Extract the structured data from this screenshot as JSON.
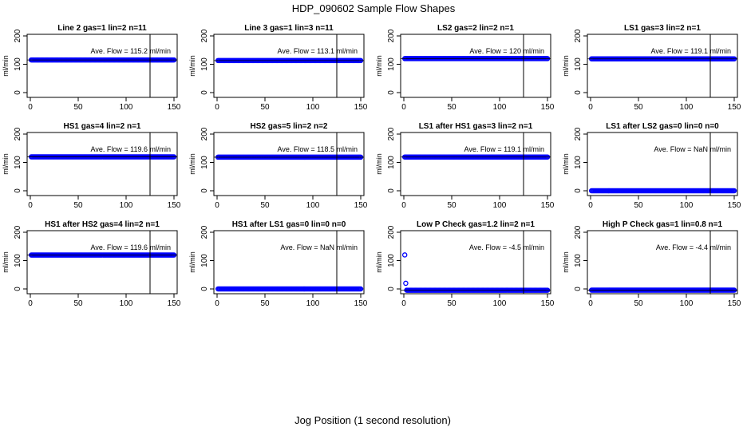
{
  "page": {
    "title": "HDP_090602  Sample Flow Shapes",
    "xlabel": "Jog Position (1 second resolution)"
  },
  "style": {
    "point_color": "#0000ff",
    "axis_color": "#000000"
  },
  "chart_data": [
    {
      "type": "scatter",
      "title": "Line 2 gas=1 lin=2 n=11",
      "ylabel": "ml/min",
      "annotation": {
        "label": "Ave. Flow =",
        "value": "115.2",
        "unit": "ml/min"
      },
      "xlim": [
        0,
        150
      ],
      "ylim": [
        0,
        200
      ],
      "xticks": [
        0,
        50,
        100,
        150
      ],
      "yticks": [
        0,
        100,
        200
      ],
      "hline": 115.2,
      "vline": 125,
      "series": [
        {
          "name": "flow",
          "x_range": [
            1,
            150
          ],
          "step": 1,
          "baseline": 115.2,
          "outliers": []
        }
      ]
    },
    {
      "type": "scatter",
      "title": "Line 3 gas=1 lin=3 n=11",
      "ylabel": "ml/min",
      "annotation": {
        "label": "Ave. Flow =",
        "value": "113.1",
        "unit": "ml/min"
      },
      "xlim": [
        0,
        150
      ],
      "ylim": [
        0,
        200
      ],
      "xticks": [
        0,
        50,
        100,
        150
      ],
      "yticks": [
        0,
        100,
        200
      ],
      "hline": 113.1,
      "vline": 125,
      "series": [
        {
          "name": "flow",
          "x_range": [
            1,
            150
          ],
          "step": 1,
          "baseline": 113.1,
          "outliers": []
        }
      ]
    },
    {
      "type": "scatter",
      "title": "LS2 gas=2 lin=2 n=1",
      "ylabel": "ml/min",
      "annotation": {
        "label": "Ave. Flow =",
        "value": "120",
        "unit": "ml/min"
      },
      "xlim": [
        0,
        150
      ],
      "ylim": [
        0,
        200
      ],
      "xticks": [
        0,
        50,
        100,
        150
      ],
      "yticks": [
        0,
        100,
        200
      ],
      "hline": 120,
      "vline": 125,
      "series": [
        {
          "name": "flow",
          "x_range": [
            1,
            150
          ],
          "step": 1,
          "baseline": 120,
          "outliers": []
        }
      ]
    },
    {
      "type": "scatter",
      "title": "LS1 gas=3 lin=2 n=1",
      "ylabel": "ml/min",
      "annotation": {
        "label": "Ave. Flow =",
        "value": "119.1",
        "unit": "ml/min"
      },
      "xlim": [
        0,
        150
      ],
      "ylim": [
        0,
        200
      ],
      "xticks": [
        0,
        50,
        100,
        150
      ],
      "yticks": [
        0,
        100,
        200
      ],
      "hline": 119.1,
      "vline": 125,
      "series": [
        {
          "name": "flow",
          "x_range": [
            1,
            150
          ],
          "step": 1,
          "baseline": 119.1,
          "outliers": []
        }
      ]
    },
    {
      "type": "scatter",
      "title": "HS1 gas=4 lin=2 n=1",
      "ylabel": "ml/min",
      "annotation": {
        "label": "Ave. Flow =",
        "value": "119.6",
        "unit": "ml/min"
      },
      "xlim": [
        0,
        150
      ],
      "ylim": [
        0,
        200
      ],
      "xticks": [
        0,
        50,
        100,
        150
      ],
      "yticks": [
        0,
        100,
        200
      ],
      "hline": 119.6,
      "vline": 125,
      "series": [
        {
          "name": "flow",
          "x_range": [
            1,
            150
          ],
          "step": 1,
          "baseline": 119.6,
          "outliers": []
        }
      ]
    },
    {
      "type": "scatter",
      "title": "HS2 gas=5 lin=2 n=2",
      "ylabel": "ml/min",
      "annotation": {
        "label": "Ave. Flow =",
        "value": "118.5",
        "unit": "ml/min"
      },
      "xlim": [
        0,
        150
      ],
      "ylim": [
        0,
        200
      ],
      "xticks": [
        0,
        50,
        100,
        150
      ],
      "yticks": [
        0,
        100,
        200
      ],
      "hline": 118.5,
      "vline": 125,
      "series": [
        {
          "name": "flow",
          "x_range": [
            1,
            150
          ],
          "step": 1,
          "baseline": 118.5,
          "outliers": []
        }
      ]
    },
    {
      "type": "scatter",
      "title": "LS1 after HS1 gas=3 lin=2 n=1",
      "ylabel": "ml/min",
      "annotation": {
        "label": "Ave. Flow =",
        "value": "119.1",
        "unit": "ml/min"
      },
      "xlim": [
        0,
        150
      ],
      "ylim": [
        0,
        200
      ],
      "xticks": [
        0,
        50,
        100,
        150
      ],
      "yticks": [
        0,
        100,
        200
      ],
      "hline": 119.1,
      "vline": 125,
      "series": [
        {
          "name": "flow",
          "x_range": [
            1,
            150
          ],
          "step": 1,
          "baseline": 119.1,
          "outliers": []
        }
      ]
    },
    {
      "type": "scatter",
      "title": "LS1 after LS2 gas=0 lin=0 n=0",
      "ylabel": "ml/min",
      "annotation": {
        "label": "Ave. Flow =",
        "value": "NaN",
        "unit": "ml/min"
      },
      "xlim": [
        0,
        150
      ],
      "ylim": [
        0,
        200
      ],
      "xticks": [
        0,
        50,
        100,
        150
      ],
      "yticks": [
        0,
        100,
        200
      ],
      "hline": null,
      "vline": 125,
      "series": [
        {
          "name": "flow",
          "x_range": [
            1,
            150
          ],
          "step": 1,
          "baseline": 0,
          "outliers": []
        }
      ]
    },
    {
      "type": "scatter",
      "title": "HS1 after HS2 gas=4 lin=2 n=1",
      "ylabel": "ml/min",
      "annotation": {
        "label": "Ave. Flow =",
        "value": "119.6",
        "unit": "ml/min"
      },
      "xlim": [
        0,
        150
      ],
      "ylim": [
        0,
        200
      ],
      "xticks": [
        0,
        50,
        100,
        150
      ],
      "yticks": [
        0,
        100,
        200
      ],
      "hline": 119.6,
      "vline": 125,
      "series": [
        {
          "name": "flow",
          "x_range": [
            1,
            150
          ],
          "step": 1,
          "baseline": 119.6,
          "outliers": []
        }
      ]
    },
    {
      "type": "scatter",
      "title": "HS1 after LS1 gas=0 lin=0 n=0",
      "ylabel": "ml/min",
      "annotation": {
        "label": "Ave. Flow =",
        "value": "NaN",
        "unit": "ml/min"
      },
      "xlim": [
        0,
        150
      ],
      "ylim": [
        0,
        200
      ],
      "xticks": [
        0,
        50,
        100,
        150
      ],
      "yticks": [
        0,
        100,
        200
      ],
      "hline": null,
      "vline": 125,
      "series": [
        {
          "name": "flow",
          "x_range": [
            1,
            150
          ],
          "step": 1,
          "baseline": 0,
          "outliers": []
        }
      ]
    },
    {
      "type": "scatter",
      "title": "Low P Check gas=1.2 lin=2 n=1",
      "ylabel": "ml/min",
      "annotation": {
        "label": "Ave. Flow =",
        "value": "-4.5",
        "unit": "ml/min"
      },
      "xlim": [
        0,
        150
      ],
      "ylim": [
        0,
        200
      ],
      "xticks": [
        0,
        50,
        100,
        150
      ],
      "yticks": [
        0,
        100,
        200
      ],
      "hline": -4.5,
      "vline": 125,
      "series": [
        {
          "name": "flow",
          "x_range": [
            3,
            150
          ],
          "step": 1,
          "baseline": -4.5,
          "outliers": [
            {
              "x": 1,
              "y": 120
            },
            {
              "x": 2,
              "y": 20
            }
          ]
        }
      ]
    },
    {
      "type": "scatter",
      "title": "High P Check gas=1 lin=0.8 n=1",
      "ylabel": "ml/min",
      "annotation": {
        "label": "Ave. Flow =",
        "value": "-4.4",
        "unit": "ml/min"
      },
      "xlim": [
        0,
        150
      ],
      "ylim": [
        0,
        200
      ],
      "xticks": [
        0,
        50,
        100,
        150
      ],
      "yticks": [
        0,
        100,
        200
      ],
      "hline": -4.4,
      "vline": 125,
      "series": [
        {
          "name": "flow",
          "x_range": [
            1,
            150
          ],
          "step": 1,
          "baseline": -4.4,
          "outliers": []
        }
      ]
    }
  ]
}
